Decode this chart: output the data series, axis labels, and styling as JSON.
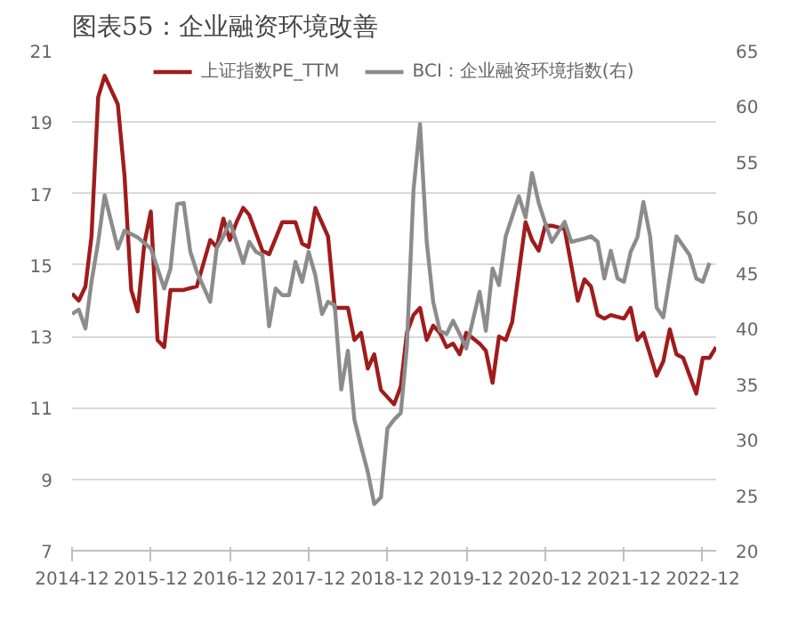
{
  "chart_data": {
    "type": "line",
    "title": "图表55：企业融资环境改善",
    "xlim": [
      "2014-12",
      "2023-02"
    ],
    "xticks": [
      "2014-12",
      "2015-12",
      "2016-12",
      "2017-12",
      "2018-12",
      "2019-12",
      "2020-12",
      "2021-12",
      "2022-12"
    ],
    "ylim": [
      7,
      21
    ],
    "yticks": [
      7,
      9,
      11,
      13,
      15,
      17,
      19,
      21
    ],
    "y2lim": [
      20,
      65
    ],
    "y2ticks": [
      20,
      25,
      30,
      35,
      40,
      45,
      50,
      55,
      60,
      65
    ],
    "grid": "y",
    "legend": "top",
    "line_style": "solid",
    "marker": "none",
    "series": [
      {
        "name": "上证指数PE_TTM",
        "color": "#a01c1c",
        "x": [
          "2014-12",
          "2015-01",
          "2015-02",
          "2015-03",
          "2015-04",
          "2015-05",
          "2015-07",
          "2015-08",
          "2015-09",
          "2015-10",
          "2015-11",
          "2015-12",
          "2016-01",
          "2016-02",
          "2016-03",
          "2016-05",
          "2016-07",
          "2016-09",
          "2016-10",
          "2016-11",
          "2016-12",
          "2017-01",
          "2017-02",
          "2017-03",
          "2017-05",
          "2017-06",
          "2017-08",
          "2017-10",
          "2017-11",
          "2017-12",
          "2018-01",
          "2018-03",
          "2018-04",
          "2018-06",
          "2018-07",
          "2018-08",
          "2018-09",
          "2018-10",
          "2018-11",
          "2018-12",
          "2019-01",
          "2019-02",
          "2019-03",
          "2019-04",
          "2019-05",
          "2019-06",
          "2019-07",
          "2019-08",
          "2019-09",
          "2019-10",
          "2019-11",
          "2019-12",
          "2020-02",
          "2020-03",
          "2020-04",
          "2020-05",
          "2020-06",
          "2020-07",
          "2020-09",
          "2020-10",
          "2020-11",
          "2020-12",
          "2021-01",
          "2021-03",
          "2021-05",
          "2021-06",
          "2021-07",
          "2021-08",
          "2021-09",
          "2021-10",
          "2021-12",
          "2022-01",
          "2022-02",
          "2022-03",
          "2022-05",
          "2022-06",
          "2022-07",
          "2022-08",
          "2022-09",
          "2022-11",
          "2022-12",
          "2023-01",
          "2023-02"
        ],
        "values": [
          14.2,
          14.0,
          14.4,
          15.8,
          19.7,
          20.3,
          19.5,
          17.5,
          14.3,
          13.7,
          15.6,
          16.5,
          12.9,
          12.7,
          14.3,
          14.3,
          14.4,
          15.7,
          15.5,
          16.3,
          15.7,
          16.2,
          16.6,
          16.4,
          15.4,
          15.3,
          16.2,
          16.2,
          15.6,
          15.5,
          16.6,
          15.8,
          13.8,
          13.8,
          12.9,
          13.1,
          12.1,
          12.5,
          11.5,
          11.3,
          11.1,
          11.6,
          13.1,
          13.6,
          13.8,
          12.9,
          13.3,
          13.1,
          12.7,
          12.8,
          12.5,
          13.1,
          12.8,
          12.6,
          11.7,
          13.0,
          12.9,
          13.4,
          16.2,
          15.7,
          15.4,
          16.1,
          16.1,
          16.0,
          14.0,
          14.6,
          14.4,
          13.6,
          13.5,
          13.6,
          13.5,
          13.8,
          12.9,
          13.1,
          11.9,
          12.3,
          13.2,
          12.5,
          12.4,
          11.4,
          12.4,
          12.4,
          12.7
        ]
      },
      {
        "name": "BCI：企业融资环境指数(右)",
        "color": "#8c8c8c",
        "axis": "y2",
        "x": [
          "2014-12",
          "2015-01",
          "2015-02",
          "2015-03",
          "2015-04",
          "2015-05",
          "2015-07",
          "2015-08",
          "2015-10",
          "2015-12",
          "2016-02",
          "2016-03",
          "2016-04",
          "2016-05",
          "2016-06",
          "2016-07",
          "2016-09",
          "2016-10",
          "2016-11",
          "2016-12",
          "2017-02",
          "2017-03",
          "2017-04",
          "2017-05",
          "2017-06",
          "2017-07",
          "2017-08",
          "2017-09",
          "2017-10",
          "2017-11",
          "2017-12",
          "2018-01",
          "2018-02",
          "2018-03",
          "2018-04",
          "2018-05",
          "2018-06",
          "2018-07",
          "2018-08",
          "2018-09",
          "2018-10",
          "2018-11",
          "2018-12",
          "2019-01",
          "2019-02",
          "2019-03",
          "2019-04",
          "2019-05",
          "2019-06",
          "2019-07",
          "2019-08",
          "2019-09",
          "2019-10",
          "2019-11",
          "2019-12",
          "2020-02",
          "2020-03",
          "2020-04",
          "2020-05",
          "2020-06",
          "2020-08",
          "2020-09",
          "2020-10",
          "2020-11",
          "2020-12",
          "2021-01",
          "2021-03",
          "2021-04",
          "2021-06",
          "2021-07",
          "2021-08",
          "2021-09",
          "2021-10",
          "2021-11",
          "2021-12",
          "2022-01",
          "2022-02",
          "2022-03",
          "2022-04",
          "2022-05",
          "2022-06",
          "2022-08",
          "2022-10",
          "2022-11",
          "2022-12",
          "2023-01"
        ],
        "values": [
          41.3,
          41.7,
          40.0,
          44.2,
          47.8,
          52.0,
          47.2,
          48.8,
          48.2,
          47.2,
          43.6,
          45.4,
          51.2,
          51.3,
          46.9,
          45.1,
          42.4,
          47.2,
          48.3,
          49.6,
          45.9,
          47.8,
          46.9,
          46.6,
          40.2,
          43.6,
          43.0,
          43.0,
          46.0,
          44.2,
          46.9,
          44.8,
          41.3,
          42.4,
          42.1,
          34.5,
          38.0,
          31.8,
          29.4,
          27.1,
          24.2,
          24.8,
          31.0,
          31.8,
          32.4,
          38.3,
          52.5,
          58.4,
          47.8,
          42.4,
          39.8,
          39.5,
          40.7,
          39.5,
          38.2,
          43.3,
          39.8,
          45.4,
          43.9,
          48.3,
          51.9,
          50.0,
          54.0,
          51.3,
          49.5,
          47.8,
          49.6,
          47.8,
          48.1,
          48.3,
          47.8,
          44.5,
          47.0,
          44.5,
          44.2,
          46.9,
          48.2,
          51.4,
          48.3,
          41.9,
          41.0,
          48.3,
          46.6,
          44.5,
          44.2,
          45.9
        ]
      }
    ]
  }
}
